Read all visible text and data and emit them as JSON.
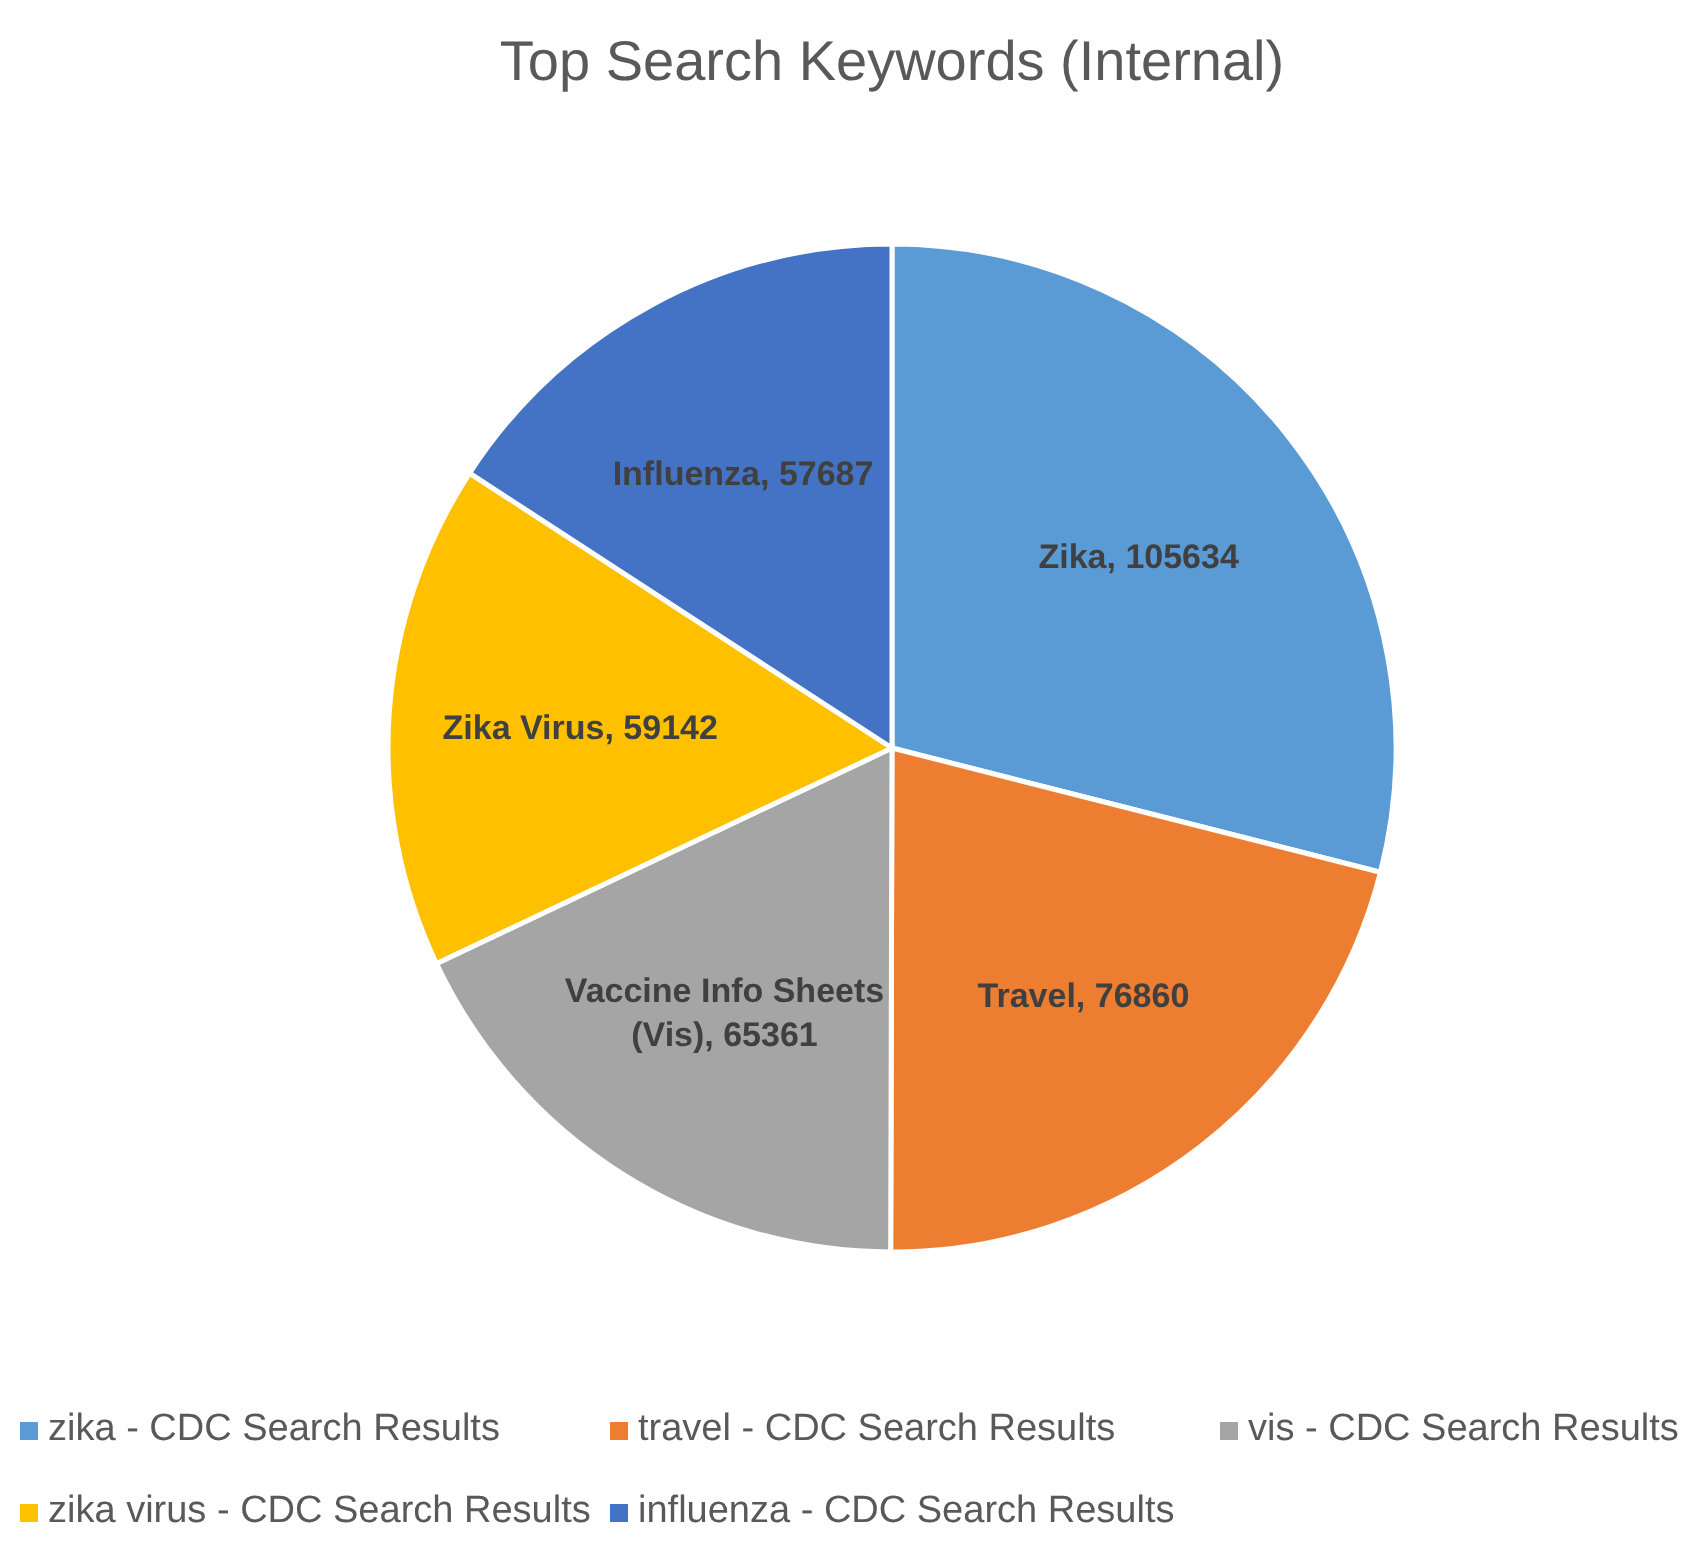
{
  "chart_data": {
    "type": "pie",
    "title": "Top Search Keywords (Internal)",
    "categories": [
      "zika - CDC Search Results",
      "travel - CDC Search Results",
      "vis - CDC Search Results",
      "zika virus - CDC Search Results",
      "influenza - CDC Search Results"
    ],
    "values": [
      105634,
      76860,
      65361,
      59142,
      57687
    ],
    "value_labels": [
      "Zika, 105634",
      "Travel, 76860",
      "Vaccine Info Sheets (Vis), 65361",
      "Zika Virus, 59142",
      "Influenza, 57687"
    ],
    "colors": [
      "#5b9bd5",
      "#ed7d31",
      "#a5a5a5",
      "#ffc000",
      "#4472c4"
    ],
    "legend": "bottom"
  }
}
